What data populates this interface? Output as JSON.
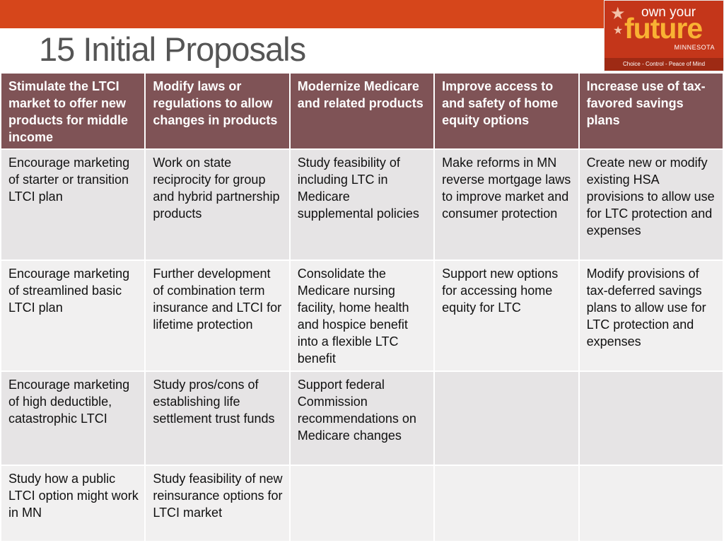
{
  "title": "15 Initial Proposals",
  "logo": {
    "line1": "own your",
    "line2": "future",
    "line3": "MINNESOTA",
    "tagline": "Choice - Control - Peace of Mind"
  },
  "columns": [
    "Stimulate the LTCI market to offer new products for middle income",
    "Modify laws or regulations to allow changes in products",
    "Modernize Medicare and related  products",
    "Improve access to and  safety of home equity options",
    "Increase use of tax-favored savings plans"
  ],
  "rows": [
    [
      "Encourage marketing of starter or transition LTCI plan",
      "Work on state reciprocity for group and hybrid partnership products",
      "Study feasibility of including LTC  in Medicare supplemental policies",
      "Make reforms in MN reverse mortgage laws to improve market and consumer protection",
      "Create new or modify existing  HSA provisions to allow use for LTC protection and expenses"
    ],
    [
      "Encourage marketing of streamlined basic LTCI plan",
      "Further development of combination term insurance and LTCI for lifetime protection",
      "Consolidate the Medicare nursing facility, home health and hospice benefit into a flexible LTC benefit",
      "Support new options for accessing home equity for LTC",
      "Modify provisions of tax-deferred savings plans to  allow use for LTC protection and expenses"
    ],
    [
      "Encourage marketing of high deductible, catastrophic LTCI",
      "Study pros/cons of establishing life settlement trust funds",
      "Support federal Commission recommendations on Medicare changes",
      "",
      ""
    ],
    [
      "Study how a  public LTCI  option  might work in MN",
      "Study feasibility of new reinsurance options for LTCI market",
      "",
      "",
      ""
    ]
  ],
  "colors": {
    "top_bar": "#d6461b",
    "header_fill": "#7f5356",
    "row_fill_a": "#e6e4e5",
    "row_fill_b": "#f1f0f0",
    "logo_fill": "#c4361a",
    "logo_accent": "#f9b233"
  }
}
